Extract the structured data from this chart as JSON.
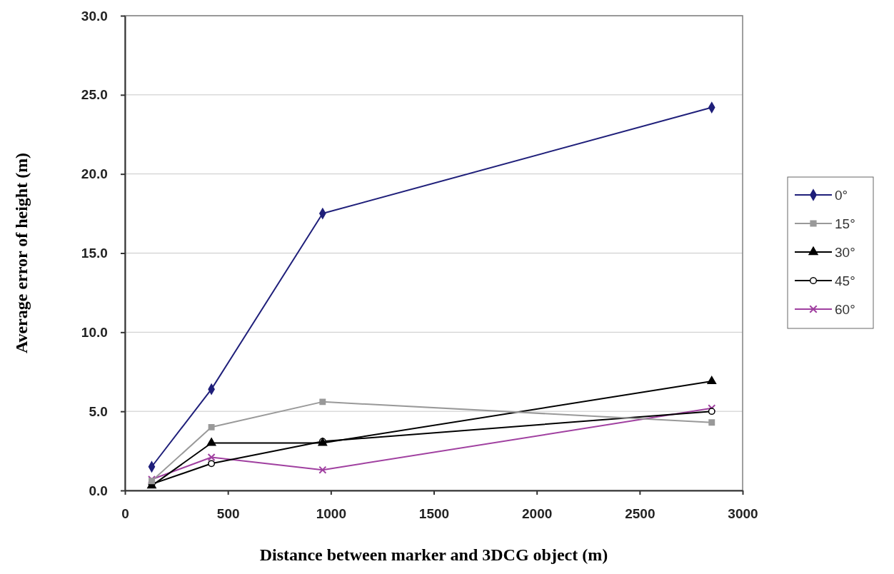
{
  "chart_data": {
    "type": "line",
    "xlabel": "Distance between marker and 3DCG object (m)",
    "ylabel": "Average error of height (m)",
    "x": [
      130,
      420,
      960,
      2850
    ],
    "xlim": [
      0,
      3000
    ],
    "xticks": [
      0,
      500,
      1000,
      1500,
      2000,
      2500,
      3000
    ],
    "ylim": [
      0,
      30
    ],
    "yticks": [
      {
        "value": 0,
        "label": "0.0"
      },
      {
        "value": 5,
        "label": "5.0"
      },
      {
        "value": 10,
        "label": "10.0"
      },
      {
        "value": 15,
        "label": "15.0"
      },
      {
        "value": 20,
        "label": "20.0"
      },
      {
        "value": 25,
        "label": "25.0"
      },
      {
        "value": 30,
        "label": "30.0"
      }
    ],
    "grid": "y",
    "legend": "right",
    "line_style": "solid",
    "series": [
      {
        "name": "0°",
        "color": "#1f1f7a",
        "marker": "diamond",
        "values": [
          1.5,
          6.4,
          17.5,
          24.2
        ]
      },
      {
        "name": "15°",
        "color": "#999999",
        "marker": "square",
        "values": [
          0.6,
          4.0,
          5.6,
          4.3
        ]
      },
      {
        "name": "30°",
        "color": "#000000",
        "marker": "triangle",
        "values": [
          0.3,
          3.0,
          3.0,
          6.9
        ]
      },
      {
        "name": "45°",
        "color": "#000000",
        "marker": "circle",
        "values": [
          0.4,
          1.7,
          3.1,
          5.0
        ]
      },
      {
        "name": "60°",
        "color": "#a040a0",
        "marker": "cross",
        "values": [
          0.7,
          2.1,
          1.3,
          5.2
        ]
      }
    ]
  }
}
